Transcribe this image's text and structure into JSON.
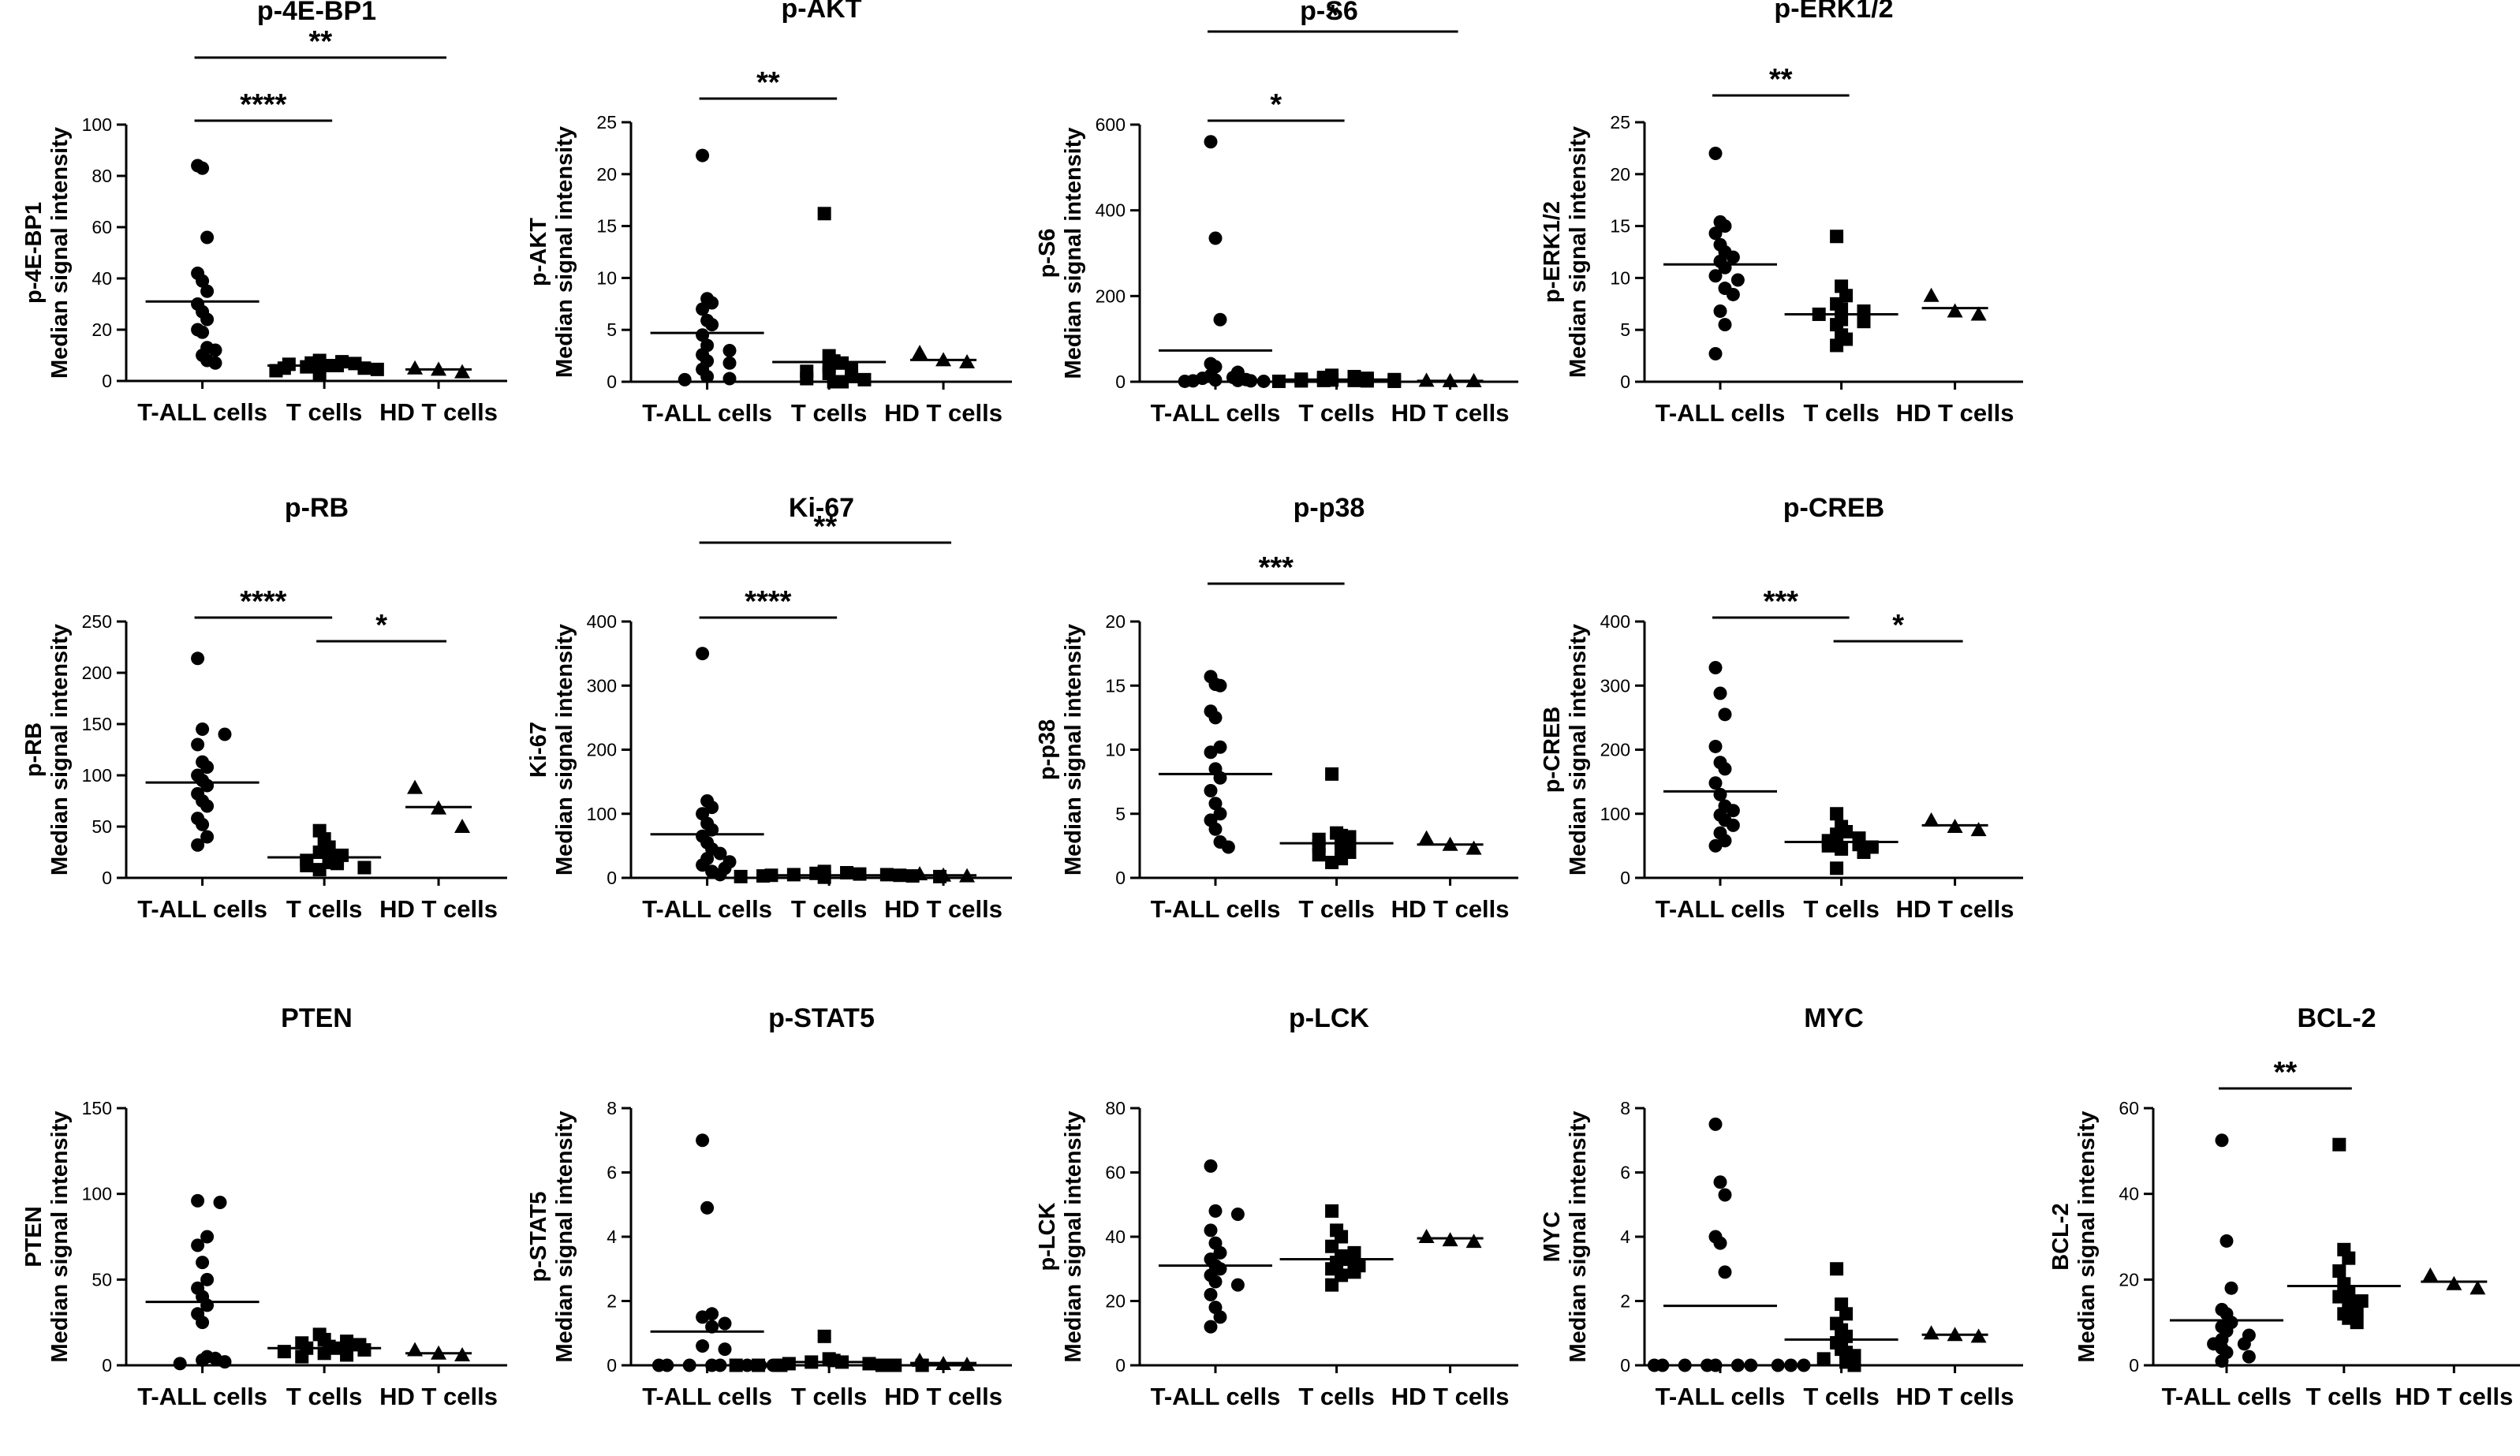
{
  "figure": {
    "colors": {
      "ink": "#000000",
      "background": "#ffffff"
    }
  },
  "chart_data": [
    {
      "type": "scatter",
      "title": "p-4E-BP1",
      "ylabel_marker": "p-4E-BP1",
      "ylabel": "Median signal intensity",
      "ylim": [
        0,
        100
      ],
      "yticks": [
        0,
        20,
        40,
        60,
        80,
        100
      ],
      "categories": [
        "T-ALL cells",
        "T cells",
        "HD T cells"
      ],
      "series": [
        {
          "name": "T-ALL cells",
          "marker": "circle",
          "values": [
            84,
            83,
            56,
            42,
            39,
            35,
            30,
            27,
            24,
            20,
            19,
            13,
            12,
            10,
            8,
            7
          ],
          "median": 31
        },
        {
          "name": "T cells",
          "marker": "square",
          "values": [
            8,
            7.5,
            7,
            6.8,
            6.5,
            6,
            6,
            5.5,
            5,
            5,
            4.5,
            4,
            3
          ],
          "median": 6
        },
        {
          "name": "HD T cells",
          "marker": "triangle",
          "values": [
            5,
            4.5,
            3.5
          ],
          "median": 4.5
        }
      ],
      "significance": [
        {
          "from": "T-ALL cells",
          "to": "T cells",
          "label": "****"
        },
        {
          "from": "T-ALL cells",
          "to": "HD T cells",
          "label": "**"
        }
      ]
    },
    {
      "type": "scatter",
      "title": "p-AKT",
      "ylabel_marker": "p-AKT",
      "ylabel": "Median signal intensity",
      "ylim": [
        0,
        25
      ],
      "yticks": [
        0,
        5,
        10,
        15,
        20,
        25
      ],
      "categories": [
        "T-ALL cells",
        "T cells",
        "HD T cells"
      ],
      "series": [
        {
          "name": "T-ALL cells",
          "marker": "circle",
          "values": [
            21.8,
            8,
            7.6,
            7,
            5.9,
            5.5,
            4.5,
            3.5,
            3,
            2.6,
            2,
            1.8,
            1.2,
            0.5,
            0.3,
            0.2
          ],
          "median": 4.7
        },
        {
          "name": "T cells",
          "marker": "square",
          "values": [
            16.2,
            2.5,
            2,
            1.8,
            1.5,
            1.2,
            1,
            0.8,
            0.5,
            0.3,
            0.2,
            0,
            0
          ],
          "median": 1.9
        },
        {
          "name": "HD T cells",
          "marker": "triangle",
          "values": [
            2.8,
            2.1,
            1.9
          ],
          "median": 2.1
        }
      ],
      "significance": [
        {
          "from": "T-ALL cells",
          "to": "T cells",
          "label": "**"
        }
      ]
    },
    {
      "type": "scatter",
      "title": "p-S6",
      "ylabel_marker": "p-S6",
      "ylabel": "Median signal intensity",
      "ylim": [
        0,
        600
      ],
      "yticks": [
        0,
        200,
        400,
        600
      ],
      "categories": [
        "T-ALL cells",
        "T cells",
        "HD T cells"
      ],
      "series": [
        {
          "name": "T-ALL cells",
          "marker": "circle",
          "values": [
            560,
            335,
            145,
            42,
            35,
            22,
            15,
            10,
            8,
            5,
            4,
            3,
            2,
            2,
            1,
            1
          ],
          "median": 73
        },
        {
          "name": "T cells",
          "marker": "square",
          "values": [
            15,
            12,
            10,
            8,
            6,
            5,
            4,
            3,
            3,
            2,
            2,
            1,
            1
          ],
          "median": 5
        },
        {
          "name": "HD T cells",
          "marker": "triangle",
          "values": [
            3,
            2,
            2
          ],
          "median": 2
        }
      ],
      "significance": [
        {
          "from": "T-ALL cells",
          "to": "T cells",
          "label": "*"
        },
        {
          "from": "T-ALL cells",
          "to": "HD T cells",
          "label": "*"
        }
      ]
    },
    {
      "type": "scatter",
      "title": "p-ERK1/2",
      "ylabel_marker": "p-ERK1/2",
      "ylabel": "Median signal intensity",
      "ylim": [
        0,
        25
      ],
      "yticks": [
        0,
        5,
        10,
        15,
        20,
        25
      ],
      "categories": [
        "T-ALL cells",
        "T cells",
        "HD T cells"
      ],
      "series": [
        {
          "name": "T-ALL cells",
          "marker": "circle",
          "values": [
            22,
            15.4,
            15,
            14.3,
            13.2,
            12.5,
            12,
            11.6,
            11,
            10.2,
            9.8,
            9,
            8.4,
            6.8,
            5.5,
            2.7
          ],
          "median": 11.3
        },
        {
          "name": "T cells",
          "marker": "square",
          "values": [
            14,
            9.2,
            8.3,
            7.5,
            7,
            6.8,
            6.5,
            6,
            5.8,
            5.5,
            4.5,
            4.1,
            3.5
          ],
          "median": 6.5
        },
        {
          "name": "HD T cells",
          "marker": "triangle",
          "values": [
            8.3,
            6.8,
            6.5
          ],
          "median": 7.1
        }
      ],
      "significance": [
        {
          "from": "T-ALL cells",
          "to": "T cells",
          "label": "**"
        }
      ]
    },
    {
      "type": "scatter",
      "title": "p-RB",
      "ylabel_marker": "p-RB",
      "ylabel": "Median signal intensity",
      "ylim": [
        0,
        250
      ],
      "yticks": [
        0,
        50,
        100,
        150,
        200,
        250
      ],
      "categories": [
        "T-ALL cells",
        "T cells",
        "HD T cells"
      ],
      "series": [
        {
          "name": "T-ALL cells",
          "marker": "circle",
          "values": [
            214,
            145,
            140,
            130,
            113,
            108,
            100,
            95,
            90,
            82,
            75,
            70,
            58,
            52,
            40,
            32
          ],
          "median": 93
        },
        {
          "name": "T cells",
          "marker": "square",
          "values": [
            46,
            38,
            30,
            25,
            22,
            20,
            18,
            17,
            15,
            14,
            12,
            10,
            8
          ],
          "median": 20
        },
        {
          "name": "HD T cells",
          "marker": "triangle",
          "values": [
            88,
            68,
            50
          ],
          "median": 69
        }
      ],
      "significance": [
        {
          "from": "T-ALL cells",
          "to": "T cells",
          "label": "****"
        },
        {
          "from": "T cells",
          "to": "HD T cells",
          "label": "*"
        }
      ]
    },
    {
      "type": "scatter",
      "title": "Ki-67",
      "ylabel_marker": "Ki-67",
      "ylabel": "Median signal intensity",
      "ylim": [
        0,
        400
      ],
      "yticks": [
        0,
        100,
        200,
        300,
        400
      ],
      "categories": [
        "T-ALL cells",
        "T cells",
        "HD T cells"
      ],
      "series": [
        {
          "name": "T-ALL cells",
          "marker": "circle",
          "values": [
            350,
            120,
            110,
            100,
            85,
            75,
            65,
            55,
            45,
            38,
            30,
            25,
            20,
            15,
            10,
            5
          ],
          "median": 68
        },
        {
          "name": "T cells",
          "marker": "square",
          "values": [
            10,
            8,
            7,
            6,
            5,
            5,
            4,
            4,
            3,
            3,
            2,
            2,
            1
          ],
          "median": 4
        },
        {
          "name": "HD T cells",
          "marker": "triangle",
          "values": [
            6,
            4,
            3
          ],
          "median": 4
        }
      ],
      "significance": [
        {
          "from": "T-ALL cells",
          "to": "T cells",
          "label": "****"
        },
        {
          "from": "T-ALL cells",
          "to": "HD T cells",
          "label": "**"
        }
      ]
    },
    {
      "type": "scatter",
      "title": "p-p38",
      "ylabel_marker": "p-p38",
      "ylabel": "Median signal intensity",
      "ylim": [
        0,
        20
      ],
      "yticks": [
        0,
        5,
        10,
        15,
        20
      ],
      "categories": [
        "T-ALL cells",
        "T cells",
        "HD T cells"
      ],
      "series": [
        {
          "name": "T-ALL cells",
          "marker": "circle",
          "values": [
            15.7,
            15.1,
            15,
            13,
            12.5,
            10.2,
            9.8,
            8.5,
            7.8,
            6.8,
            5.8,
            5,
            4.5,
            3.8,
            2.8,
            2.4
          ],
          "median": 8.1
        },
        {
          "name": "T cells",
          "marker": "square",
          "values": [
            8.1,
            3.5,
            3.3,
            3.2,
            3,
            2.8,
            2.7,
            2.5,
            2.2,
            2,
            1.8,
            1.5,
            1.2
          ],
          "median": 2.7
        },
        {
          "name": "HD T cells",
          "marker": "triangle",
          "values": [
            3.1,
            2.6,
            2.3
          ],
          "median": 2.6
        }
      ],
      "significance": [
        {
          "from": "T-ALL cells",
          "to": "T cells",
          "label": "***"
        }
      ]
    },
    {
      "type": "scatter",
      "title": "p-CREB",
      "ylabel_marker": "p-CREB",
      "ylabel": "Median signal intensity",
      "ylim": [
        0,
        400
      ],
      "yticks": [
        0,
        100,
        200,
        300,
        400
      ],
      "categories": [
        "T-ALL cells",
        "T cells",
        "HD T cells"
      ],
      "series": [
        {
          "name": "T-ALL cells",
          "marker": "circle",
          "values": [
            328,
            288,
            255,
            205,
            180,
            170,
            148,
            130,
            112,
            105,
            98,
            90,
            82,
            70,
            58,
            50
          ],
          "median": 135
        },
        {
          "name": "T cells",
          "marker": "square",
          "values": [
            100,
            80,
            72,
            68,
            62,
            58,
            55,
            52,
            50,
            48,
            45,
            40,
            15
          ],
          "median": 56
        },
        {
          "name": "HD T cells",
          "marker": "triangle",
          "values": [
            90,
            80,
            75
          ],
          "median": 82
        }
      ],
      "significance": [
        {
          "from": "T-ALL cells",
          "to": "T cells",
          "label": "***"
        },
        {
          "from": "T cells",
          "to": "HD T cells",
          "label": "*"
        }
      ]
    },
    {
      "type": "scatter",
      "title": "PTEN",
      "ylabel_marker": "PTEN",
      "ylabel": "Median signal intensity",
      "ylim": [
        0,
        150
      ],
      "yticks": [
        0,
        50,
        100,
        150
      ],
      "categories": [
        "T-ALL cells",
        "T cells",
        "HD T cells"
      ],
      "series": [
        {
          "name": "T-ALL cells",
          "marker": "circle",
          "values": [
            96,
            95,
            75,
            70,
            60,
            50,
            45,
            40,
            35,
            30,
            25,
            5,
            4,
            3,
            2,
            1
          ],
          "median": 37
        },
        {
          "name": "T cells",
          "marker": "square",
          "values": [
            18,
            15,
            14,
            13,
            12,
            11,
            10,
            10,
            9,
            8,
            7,
            6,
            5
          ],
          "median": 10
        },
        {
          "name": "HD T cells",
          "marker": "triangle",
          "values": [
            9,
            7,
            6
          ],
          "median": 7
        }
      ],
      "significance": []
    },
    {
      "type": "scatter",
      "title": "p-STAT5",
      "ylabel_marker": "p-STAT5",
      "ylabel": "Median signal intensity",
      "ylim": [
        0,
        8
      ],
      "yticks": [
        0,
        2,
        4,
        6,
        8
      ],
      "categories": [
        "T-ALL cells",
        "T cells",
        "HD T cells"
      ],
      "series": [
        {
          "name": "T-ALL cells",
          "marker": "circle",
          "values": [
            7,
            4.9,
            1.6,
            1.5,
            1.3,
            1.2,
            0.6,
            0.5,
            0,
            0,
            0,
            0,
            0,
            0,
            0,
            0
          ],
          "median": 1.05
        },
        {
          "name": "T cells",
          "marker": "square",
          "values": [
            0.9,
            0.2,
            0.15,
            0.1,
            0.1,
            0.05,
            0.05,
            0,
            0,
            0,
            0,
            0,
            0
          ],
          "median": 0.1
        },
        {
          "name": "HD T cells",
          "marker": "triangle",
          "values": [
            0.15,
            0.05,
            0.02
          ],
          "median": 0.07
        }
      ],
      "significance": []
    },
    {
      "type": "scatter",
      "title": "p-LCK",
      "ylabel_marker": "p-LCK",
      "ylabel": "Median signal intensity",
      "ylim": [
        0,
        80
      ],
      "yticks": [
        0,
        20,
        40,
        60,
        80
      ],
      "categories": [
        "T-ALL cells",
        "T cells",
        "HD T cells"
      ],
      "series": [
        {
          "name": "T-ALL cells",
          "marker": "circle",
          "values": [
            62,
            48,
            47,
            42,
            38,
            35,
            33,
            31,
            30,
            28,
            26,
            25,
            22,
            18,
            15,
            12
          ],
          "median": 31
        },
        {
          "name": "T cells",
          "marker": "square",
          "values": [
            48,
            42,
            40,
            37,
            35,
            34,
            33,
            32,
            31,
            30,
            29,
            28,
            25
          ],
          "median": 33
        },
        {
          "name": "HD T cells",
          "marker": "triangle",
          "values": [
            40,
            39,
            38.5
          ],
          "median": 39.5
        }
      ],
      "significance": []
    },
    {
      "type": "scatter",
      "title": "MYC",
      "ylabel_marker": "MYC",
      "ylabel": "Median signal intensity",
      "ylim": [
        0,
        8
      ],
      "yticks": [
        0,
        2,
        4,
        6,
        8
      ],
      "categories": [
        "T-ALL cells",
        "T cells",
        "HD T cells"
      ],
      "series": [
        {
          "name": "T-ALL cells",
          "marker": "circle",
          "values": [
            7.5,
            5.7,
            5.3,
            4,
            3.8,
            2.9,
            0,
            0,
            0,
            0,
            0,
            0,
            0,
            0,
            0,
            0
          ],
          "median": 1.85
        },
        {
          "name": "T cells",
          "marker": "square",
          "values": [
            3,
            1.9,
            1.6,
            1.3,
            1.1,
            0.9,
            0.7,
            0.5,
            0.4,
            0.3,
            0.2,
            0.1,
            0
          ],
          "median": 0.8
        },
        {
          "name": "HD T cells",
          "marker": "triangle",
          "values": [
            1,
            0.95,
            0.9
          ],
          "median": 0.95
        }
      ],
      "significance": []
    },
    {
      "type": "scatter",
      "title": "BCL-2",
      "ylabel_marker": "BCL-2",
      "ylabel": "Median signal intensity",
      "ylim": [
        0,
        60
      ],
      "yticks": [
        0,
        20,
        40,
        60
      ],
      "categories": [
        "T-ALL cells",
        "T cells",
        "HD T cells"
      ],
      "series": [
        {
          "name": "T-ALL cells",
          "marker": "circle",
          "values": [
            52.5,
            29,
            18,
            13,
            12,
            10,
            9,
            8,
            7,
            6,
            5,
            5,
            4,
            3,
            2,
            1
          ],
          "median": 10.5
        },
        {
          "name": "T cells",
          "marker": "square",
          "values": [
            51.5,
            27,
            25,
            22,
            19,
            17,
            16,
            15,
            14,
            13,
            12,
            11,
            10
          ],
          "median": 18.5
        },
        {
          "name": "HD T cells",
          "marker": "triangle",
          "values": [
            21,
            19,
            18
          ],
          "median": 19.5
        }
      ],
      "significance": [
        {
          "from": "T-ALL cells",
          "to": "T cells",
          "label": "**"
        }
      ]
    }
  ]
}
